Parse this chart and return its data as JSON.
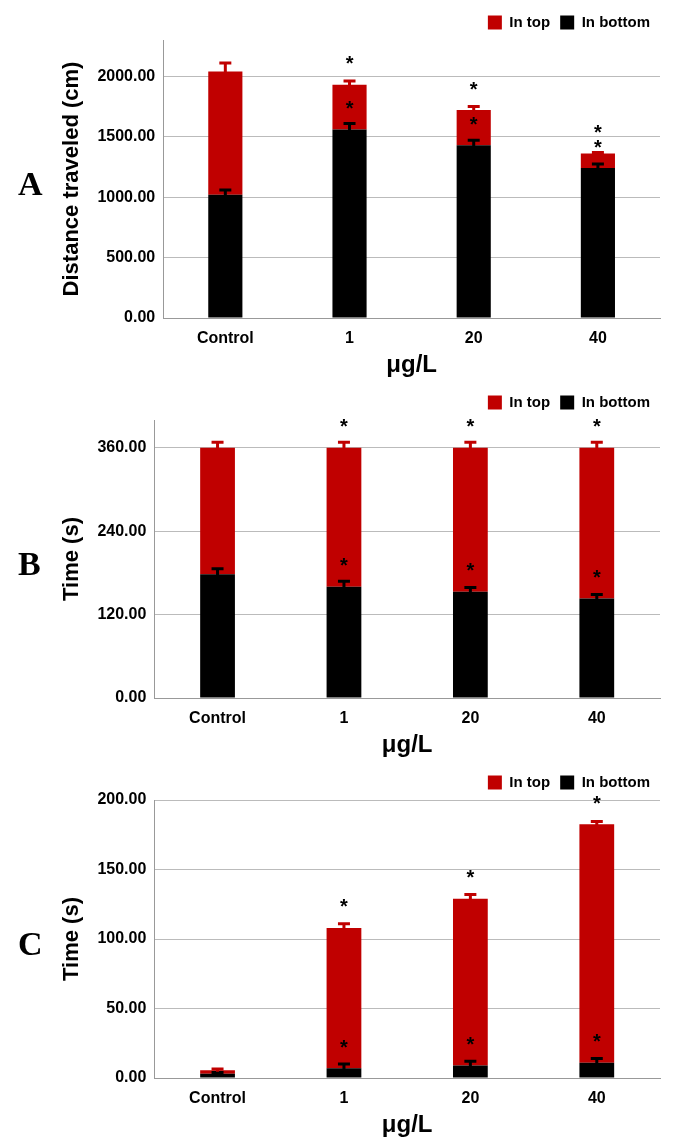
{
  "chart_data": [
    {
      "type": "bar",
      "stacked": true,
      "categories": [
        "Control",
        "1",
        "20",
        "40"
      ],
      "xlabel": "μg/L",
      "ylabel": "Distance traveled (cm)",
      "ylim": [
        0,
        2300
      ],
      "yticks": [
        {
          "value": 0,
          "label": "0.00"
        },
        {
          "value": 500,
          "label": "500.00"
        },
        {
          "value": 1000,
          "label": "1000.00"
        },
        {
          "value": 1500,
          "label": "1500.00"
        },
        {
          "value": 2000,
          "label": "2000.00"
        }
      ],
      "grid": "y",
      "legend": "top right",
      "series": [
        {
          "name": "In bottom",
          "color": "#000000",
          "values": [
            1020,
            1560,
            1430,
            1240
          ],
          "errors": [
            40,
            50,
            40,
            35
          ]
        },
        {
          "name": "In top",
          "color": "#c00000",
          "values": [
            1020,
            370,
            290,
            120
          ],
          "errors": [
            70,
            30,
            30,
            10
          ]
        }
      ],
      "annotations": [
        "A",
        {
          "text": "*",
          "x": "1",
          "y": 1930
        },
        {
          "text": "*",
          "x": "1",
          "y": 1560
        },
        {
          "text": "*",
          "x": "20",
          "y": 1720
        },
        {
          "text": "*",
          "x": "20",
          "y": 1430
        },
        {
          "text": "*",
          "x": "40",
          "y": 1360
        },
        {
          "text": "*",
          "x": "40",
          "y": 1240
        }
      ]
    },
    {
      "type": "bar",
      "stacked": true,
      "categories": [
        "Control",
        "1",
        "20",
        "40"
      ],
      "xlabel": "μg/L",
      "ylabel": "Time (s)",
      "ylim": [
        0,
        400
      ],
      "yticks": [
        {
          "value": 0,
          "label": "0.00"
        },
        {
          "value": 120,
          "label": "120.00"
        },
        {
          "value": 240,
          "label": "240.00"
        },
        {
          "value": 360,
          "label": "360.00"
        }
      ],
      "grid": "y",
      "legend": "top right",
      "series": [
        {
          "name": "In bottom",
          "color": "#000000",
          "values": [
            178,
            160,
            153,
            143
          ],
          "errors": [
            8,
            8,
            6,
            6
          ]
        },
        {
          "name": "In top",
          "color": "#c00000",
          "values": [
            182,
            200,
            207,
            217
          ],
          "errors": [
            8,
            8,
            8,
            8
          ]
        }
      ],
      "annotations": [
        "B",
        {
          "text": "*",
          "x": "1",
          "y": 360
        },
        {
          "text": "*",
          "x": "1",
          "y": 160
        },
        {
          "text": "*",
          "x": "20",
          "y": 360
        },
        {
          "text": "*",
          "x": "20",
          "y": 153
        },
        {
          "text": "*",
          "x": "40",
          "y": 360
        },
        {
          "text": "*",
          "x": "40",
          "y": 143
        }
      ]
    },
    {
      "type": "bar",
      "stacked": true,
      "categories": [
        "Control",
        "1",
        "20",
        "40"
      ],
      "xlabel": "μg/L",
      "ylabel": "Time (s)",
      "ylim": [
        0,
        200
      ],
      "yticks": [
        {
          "value": 0,
          "label": "0.00"
        },
        {
          "value": 50,
          "label": "50.00"
        },
        {
          "value": 100,
          "label": "100.00"
        },
        {
          "value": 150,
          "label": "150.00"
        },
        {
          "value": 200,
          "label": "200.00"
        }
      ],
      "grid": "y",
      "legend": "top right",
      "series": [
        {
          "name": "In bottom",
          "color": "#000000",
          "values": [
            3,
            7,
            9,
            11
          ],
          "errors": [
            1,
            3,
            3,
            3
          ]
        },
        {
          "name": "In top",
          "color": "#c00000",
          "values": [
            2.5,
            101,
            120,
            171.5
          ],
          "errors": [
            1,
            3,
            3,
            2
          ]
        }
      ],
      "annotations": [
        "C",
        {
          "text": "*",
          "x": "1",
          "y": 108
        },
        {
          "text": "*",
          "x": "1",
          "y": 7
        },
        {
          "text": "*",
          "x": "20",
          "y": 129
        },
        {
          "text": "*",
          "x": "20",
          "y": 9
        },
        {
          "text": "*",
          "x": "40",
          "y": 182.5
        },
        {
          "text": "*",
          "x": "40",
          "y": 11
        }
      ]
    }
  ]
}
